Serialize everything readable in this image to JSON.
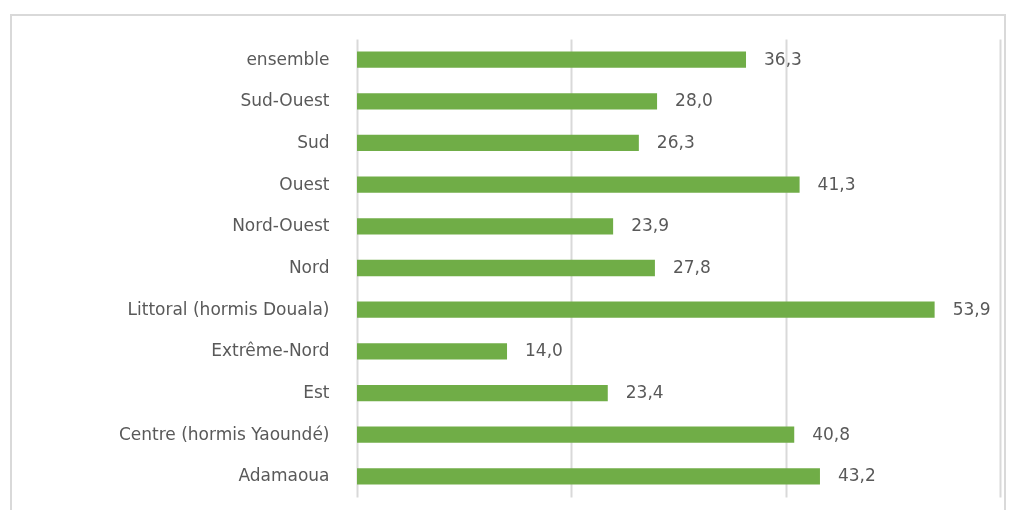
{
  "chart_data": {
    "type": "bar",
    "orientation": "horizontal",
    "categories": [
      "ensemble",
      "Sud-Ouest",
      "Sud",
      "Ouest",
      "Nord-Ouest",
      "Nord",
      "Littoral (hormis Douala)",
      "Extrême-Nord",
      "Est",
      "Centre (hormis Yaoundé)",
      "Adamaoua"
    ],
    "values": [
      36.3,
      28.0,
      26.3,
      41.3,
      23.9,
      27.8,
      53.9,
      14.0,
      23.4,
      40.8,
      43.2
    ],
    "value_labels": [
      "36,3",
      "28,0",
      "26,3",
      "41,3",
      "23,9",
      "27,8",
      "53,9",
      "14,0",
      "23,4",
      "40,8",
      "43,2"
    ],
    "color": "#70ad47",
    "xlim": [
      0,
      60
    ],
    "xticks": [
      {
        "value": 0,
        "label": null
      },
      {
        "value": 20,
        "label": null
      },
      {
        "value": 40,
        "label": null
      },
      {
        "value": 60,
        "label": null
      }
    ],
    "grid": "x",
    "tick_labels": "y"
  }
}
